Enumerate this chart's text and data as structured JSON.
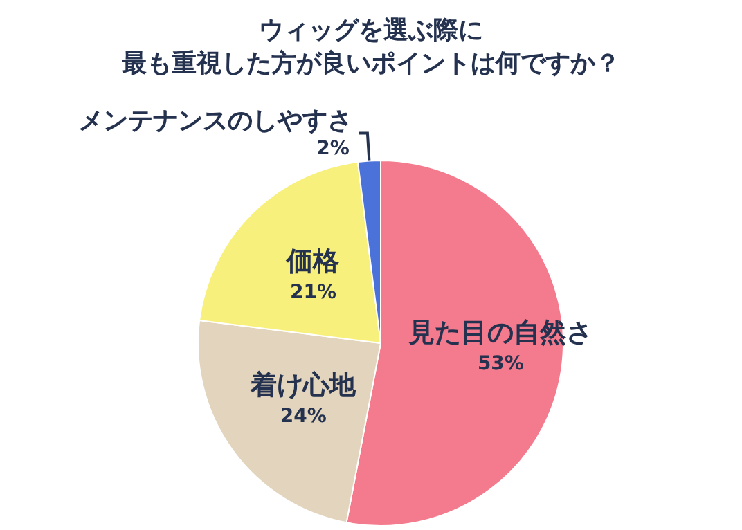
{
  "chart_data": {
    "type": "pie",
    "title": "ウィッグを選ぶ際に",
    "subtitle": "最も重視した方が良いポイントは何ですか？",
    "categories": [
      "見た目の自然さ",
      "着け心地",
      "価格",
      "メンテナンスのしやすさ"
    ],
    "values": [
      53,
      24,
      21,
      2
    ],
    "value_labels": [
      "53%",
      "24%",
      "21%",
      "2%"
    ],
    "colors": [
      "#f47b8d",
      "#e2d4bd",
      "#f8f07c",
      "#4b72d9"
    ],
    "legend": false
  }
}
